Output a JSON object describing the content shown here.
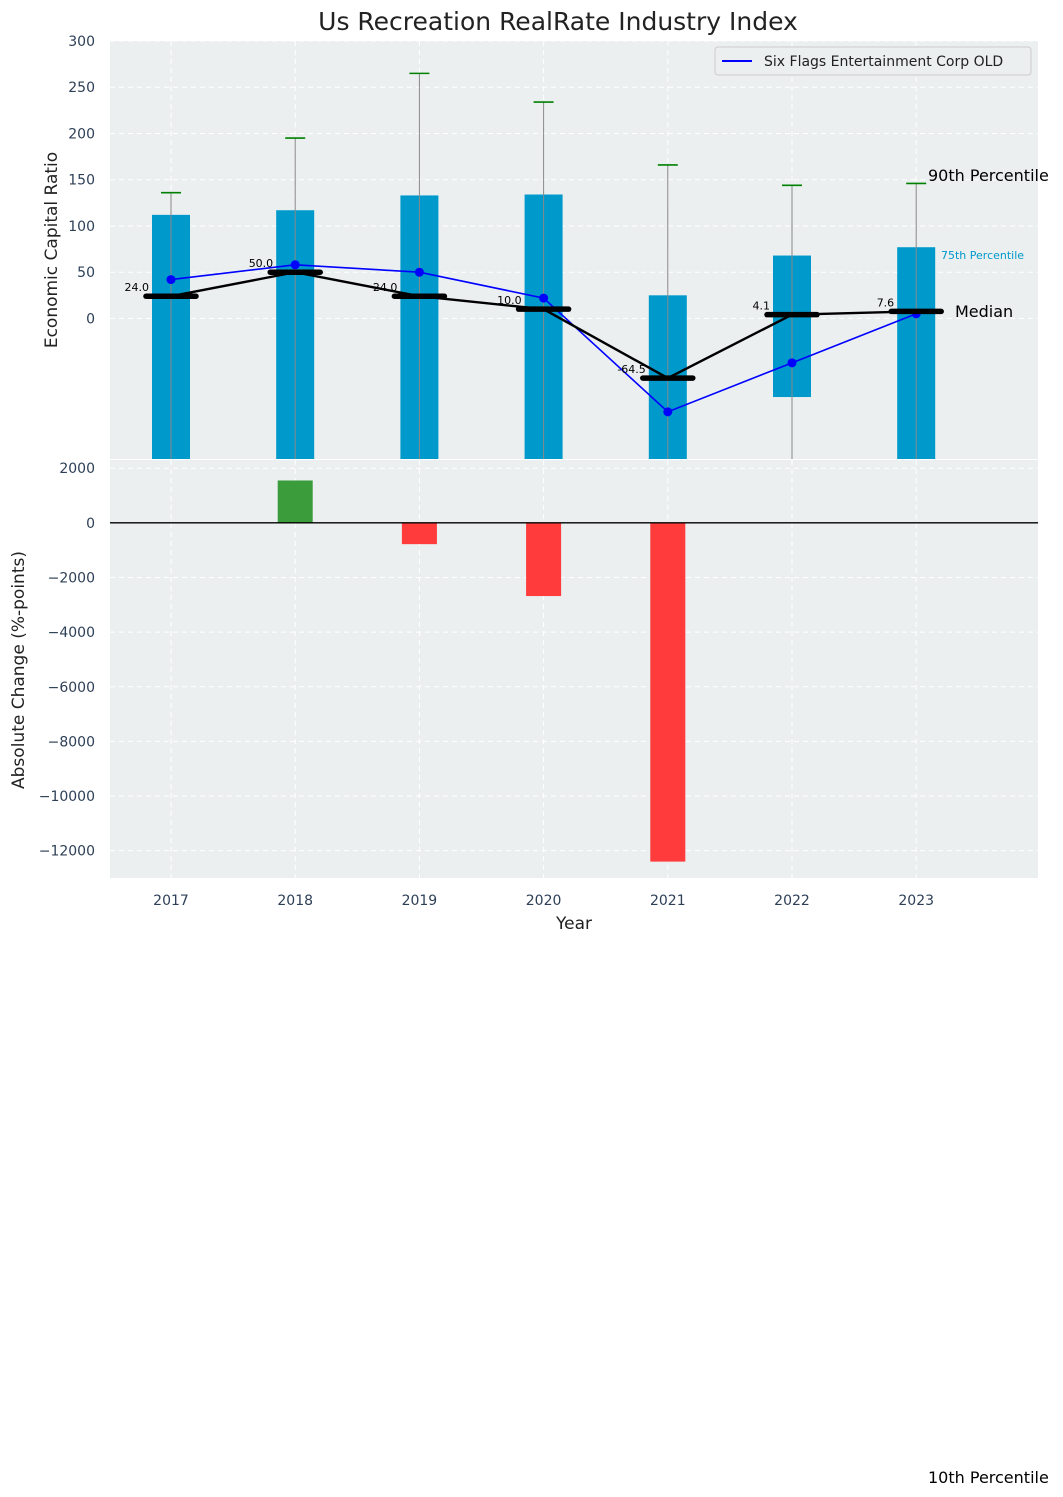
{
  "chart_data": {
    "type": "bar",
    "title": "Us Recreation RealRate Industry Index",
    "xlabel": "Year",
    "categories": [
      "2017",
      "2018",
      "2019",
      "2020",
      "2021",
      "2022",
      "2023"
    ],
    "top_panel": {
      "ylabel": "Economic Capital Ratio",
      "ylim": [
        -152,
        300
      ],
      "yticks": [
        0,
        50,
        100,
        150,
        200,
        250,
        300
      ],
      "grid": true,
      "legend": {
        "position": "top-right",
        "entries": [
          "Six Flags Entertainment Corp OLD"
        ]
      },
      "p25": [
        -152,
        -152,
        -152,
        -152,
        -152,
        -85,
        -152
      ],
      "p75": [
        112,
        117,
        133,
        134,
        25,
        68,
        77
      ],
      "p90": [
        136,
        195,
        265,
        234,
        166,
        144,
        146
      ],
      "median": [
        24.0,
        50.0,
        24.0,
        10.0,
        -64.5,
        4.1,
        7.6
      ],
      "median_labels": [
        "24.0",
        "50.0",
        "24.0",
        "10.0",
        "-64.5",
        "4.1",
        "7.6"
      ],
      "company_series": {
        "name": "Six Flags Entertainment Corp OLD",
        "values": [
          42,
          58,
          50,
          22,
          -101,
          -48,
          5
        ]
      },
      "annotations": {
        "p90": "90th Percentile",
        "p75": "75th Percentile",
        "median": "Median",
        "p10": "10th Percentile"
      }
    },
    "bottom_panel": {
      "ylabel": "Absolute Change (%-points)",
      "ylim": [
        -13000,
        2300
      ],
      "yticks": [
        2000,
        0,
        -2000,
        -4000,
        -6000,
        -8000,
        -10000,
        -12000
      ],
      "ytick_labels": [
        "2000",
        "0",
        "−2000",
        "−4000",
        "−6000",
        "−8000",
        "−10000",
        "−12000"
      ],
      "values": [
        0,
        1550,
        -780,
        -2680,
        -12400,
        0,
        0
      ],
      "positive_color": "#3a9c3a",
      "negative_color": "#ff3b3b"
    },
    "colors": {
      "iqr_bar": "#0099cc",
      "median": "#000000",
      "company": "#0000ff",
      "p90_cap": "#008000",
      "whisker": "#888888",
      "panel_bg": "#ebeff0",
      "tick_text": "#2e4057"
    }
  }
}
